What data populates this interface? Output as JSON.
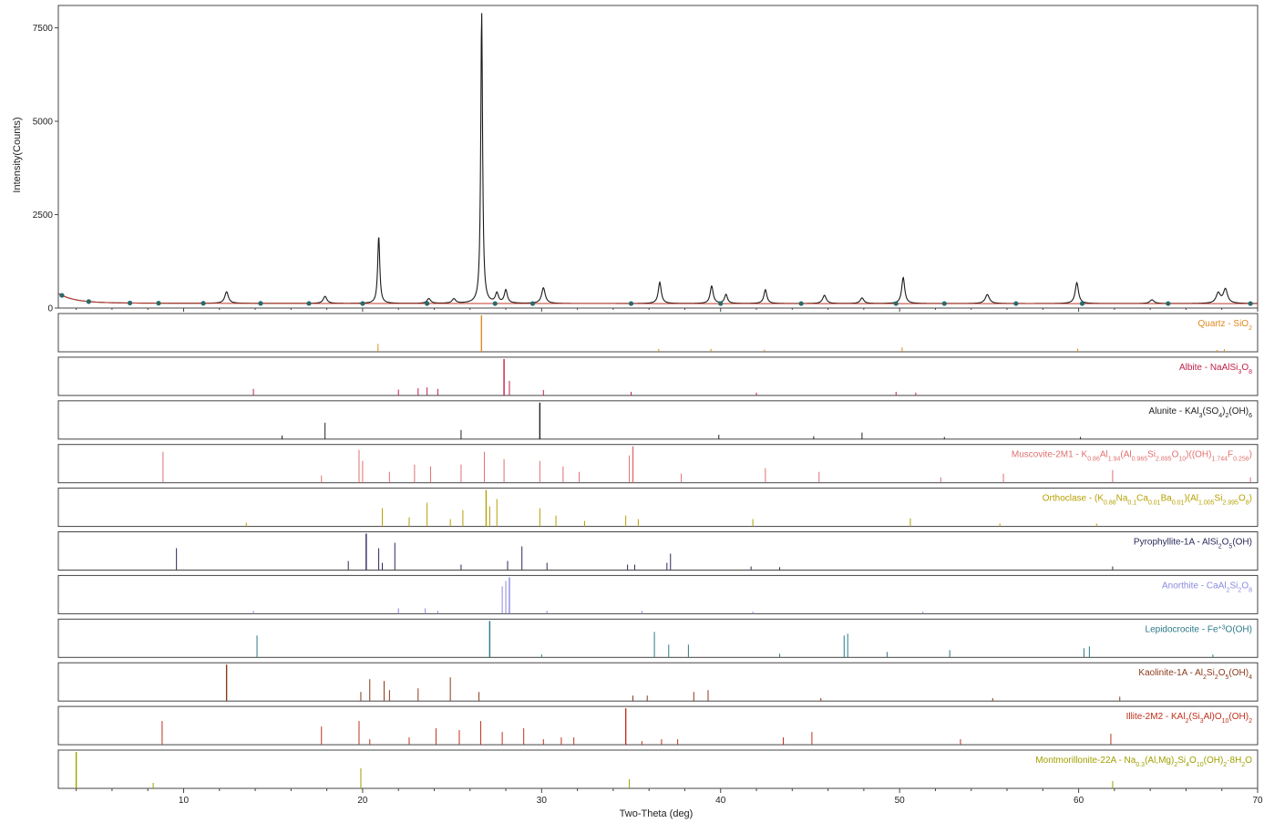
{
  "chart_data": {
    "type": "line",
    "title": "",
    "xlabel": "Two-Theta (deg)",
    "ylabel": "Intensity(Counts)",
    "xlim": [
      3,
      70
    ],
    "ylim": [
      0,
      8100
    ],
    "x_ticks": [
      "10",
      "20",
      "30",
      "40",
      "50",
      "60",
      "70"
    ],
    "y_ticks": [
      "0",
      "2500",
      "5000",
      "7500"
    ],
    "pattern": {
      "color": "#1a1a1a",
      "background_color": "#c0392b",
      "background_level": 120,
      "peaks": [
        {
          "x": 12.4,
          "y": 310,
          "w": 0.12
        },
        {
          "x": 17.9,
          "y": 190,
          "w": 0.12
        },
        {
          "x": 20.9,
          "y": 1800,
          "w": 0.07
        },
        {
          "x": 23.7,
          "y": 130,
          "w": 0.12
        },
        {
          "x": 25.1,
          "y": 120,
          "w": 0.12
        },
        {
          "x": 26.65,
          "y": 7850,
          "w": 0.06
        },
        {
          "x": 27.5,
          "y": 260,
          "w": 0.1
        },
        {
          "x": 28.0,
          "y": 350,
          "w": 0.1
        },
        {
          "x": 30.1,
          "y": 420,
          "w": 0.12
        },
        {
          "x": 36.6,
          "y": 570,
          "w": 0.1
        },
        {
          "x": 39.5,
          "y": 470,
          "w": 0.1
        },
        {
          "x": 40.3,
          "y": 240,
          "w": 0.1
        },
        {
          "x": 42.5,
          "y": 370,
          "w": 0.1
        },
        {
          "x": 45.8,
          "y": 220,
          "w": 0.12
        },
        {
          "x": 47.9,
          "y": 150,
          "w": 0.12
        },
        {
          "x": 50.2,
          "y": 700,
          "w": 0.1
        },
        {
          "x": 54.9,
          "y": 240,
          "w": 0.14
        },
        {
          "x": 59.9,
          "y": 560,
          "w": 0.11
        },
        {
          "x": 64.1,
          "y": 100,
          "w": 0.14
        },
        {
          "x": 67.8,
          "y": 270,
          "w": 0.14
        },
        {
          "x": 68.2,
          "y": 380,
          "w": 0.14
        }
      ]
    },
    "background_points": [
      3.2,
      4.7,
      7.0,
      8.6,
      11.1,
      14.3,
      17.0,
      20.0,
      23.6,
      27.4,
      29.5,
      35.0,
      40.0,
      44.5,
      49.8,
      52.5,
      56.5,
      60.2,
      65.0,
      69.6
    ],
    "phases": [
      {
        "name_html": "Quartz - SiO<tspan baseline-shift=\"sub\" font-size=\"7\">2</tspan>",
        "color": "#e08a1e",
        "sticks": [
          [
            20.86,
            0.22
          ],
          [
            26.64,
            1.0
          ],
          [
            36.54,
            0.08
          ],
          [
            39.46,
            0.08
          ],
          [
            42.45,
            0.06
          ],
          [
            50.14,
            0.12
          ],
          [
            59.95,
            0.09
          ],
          [
            68.14,
            0.07
          ],
          [
            67.74,
            0.05
          ]
        ]
      },
      {
        "name_html": "Albite - NaAlSi<tspan baseline-shift=\"sub\" font-size=\"7\">3</tspan>O<tspan baseline-shift=\"sub\" font-size=\"7\">8</tspan>",
        "color": "#c0204a",
        "sticks": [
          [
            13.9,
            0.18
          ],
          [
            22.0,
            0.16
          ],
          [
            23.1,
            0.2
          ],
          [
            23.6,
            0.22
          ],
          [
            24.2,
            0.18
          ],
          [
            27.9,
            1.0
          ],
          [
            28.2,
            0.4
          ],
          [
            30.1,
            0.15
          ],
          [
            35.0,
            0.1
          ],
          [
            42.0,
            0.08
          ],
          [
            49.8,
            0.1
          ],
          [
            50.9,
            0.08
          ]
        ]
      },
      {
        "name_html": "Alunite - KAl<tspan baseline-shift=\"sub\" font-size=\"7\">3</tspan>(SO<tspan baseline-shift=\"sub\" font-size=\"7\">4</tspan>)<tspan baseline-shift=\"sub\" font-size=\"7\">2</tspan>(OH)<tspan baseline-shift=\"sub\" font-size=\"7\">6</tspan>",
        "color": "#222222",
        "sticks": [
          [
            15.5,
            0.1
          ],
          [
            17.9,
            0.45
          ],
          [
            25.5,
            0.25
          ],
          [
            29.9,
            1.0
          ],
          [
            39.9,
            0.12
          ],
          [
            45.2,
            0.08
          ],
          [
            47.9,
            0.18
          ],
          [
            52.5,
            0.06
          ],
          [
            60.1,
            0.06
          ]
        ]
      },
      {
        "name_html": "Muscovite-2M1 - K<tspan baseline-shift=\"sub\" font-size=\"7\">0.86</tspan>Al<tspan baseline-shift=\"sub\" font-size=\"7\">1.94</tspan>(Al<tspan baseline-shift=\"sub\" font-size=\"7\">0.965</tspan>Si<tspan baseline-shift=\"sub\" font-size=\"7\">2.895</tspan>O<tspan baseline-shift=\"sub\" font-size=\"7\">10</tspan>)((OH)<tspan baseline-shift=\"sub\" font-size=\"7\">1.744</tspan>F<tspan baseline-shift=\"sub\" font-size=\"7\">0.256</tspan>)",
        "color": "#e07070",
        "sticks": [
          [
            8.85,
            0.85
          ],
          [
            17.7,
            0.2
          ],
          [
            19.8,
            0.9
          ],
          [
            20.0,
            0.6
          ],
          [
            21.5,
            0.3
          ],
          [
            22.9,
            0.5
          ],
          [
            23.8,
            0.45
          ],
          [
            25.5,
            0.5
          ],
          [
            26.8,
            0.85
          ],
          [
            27.9,
            0.65
          ],
          [
            29.9,
            0.6
          ],
          [
            31.2,
            0.45
          ],
          [
            32.1,
            0.3
          ],
          [
            34.9,
            0.75
          ],
          [
            35.1,
            1.0
          ],
          [
            37.8,
            0.25
          ],
          [
            42.5,
            0.4
          ],
          [
            45.5,
            0.3
          ],
          [
            52.3,
            0.15
          ],
          [
            55.8,
            0.25
          ],
          [
            61.9,
            0.35
          ],
          [
            69.6,
            0.15
          ]
        ]
      },
      {
        "name_html": "Orthoclase - (K<tspan baseline-shift=\"sub\" font-size=\"7\">0.88</tspan>Na<tspan baseline-shift=\"sub\" font-size=\"7\">0.1</tspan>Ca<tspan baseline-shift=\"sub\" font-size=\"7\">0.01</tspan>Ba<tspan baseline-shift=\"sub\" font-size=\"7\">0.01</tspan>)(Al<tspan baseline-shift=\"sub\" font-size=\"7\">1.005</tspan>Si<tspan baseline-shift=\"sub\" font-size=\"7\">2.995</tspan>O<tspan baseline-shift=\"sub\" font-size=\"7\">8</tspan>)",
        "color": "#b5a000",
        "sticks": [
          [
            13.5,
            0.1
          ],
          [
            21.1,
            0.5
          ],
          [
            22.6,
            0.25
          ],
          [
            23.6,
            0.65
          ],
          [
            24.9,
            0.2
          ],
          [
            25.6,
            0.45
          ],
          [
            26.9,
            1.0
          ],
          [
            27.1,
            0.55
          ],
          [
            27.5,
            0.75
          ],
          [
            29.9,
            0.5
          ],
          [
            30.8,
            0.3
          ],
          [
            32.4,
            0.15
          ],
          [
            34.7,
            0.3
          ],
          [
            35.4,
            0.2
          ],
          [
            41.8,
            0.2
          ],
          [
            50.6,
            0.22
          ],
          [
            55.6,
            0.08
          ],
          [
            61.0,
            0.08
          ]
        ]
      },
      {
        "name_html": "Pyrophyllite-1A - AlSi<tspan baseline-shift=\"sub\" font-size=\"7\">2</tspan>O<tspan baseline-shift=\"sub\" font-size=\"7\">5</tspan>(OH)",
        "color": "#2a2a5a",
        "sticks": [
          [
            9.6,
            0.6
          ],
          [
            19.2,
            0.25
          ],
          [
            20.2,
            1.0
          ],
          [
            20.9,
            0.6
          ],
          [
            21.1,
            0.2
          ],
          [
            21.8,
            0.75
          ],
          [
            25.5,
            0.15
          ],
          [
            28.1,
            0.25
          ],
          [
            28.9,
            0.65
          ],
          [
            30.3,
            0.2
          ],
          [
            34.8,
            0.15
          ],
          [
            35.2,
            0.15
          ],
          [
            37.0,
            0.2
          ],
          [
            37.2,
            0.45
          ],
          [
            41.7,
            0.1
          ],
          [
            43.3,
            0.08
          ],
          [
            61.9,
            0.1
          ]
        ]
      },
      {
        "name_html": "Anorthite - CaAl<tspan baseline-shift=\"sub\" font-size=\"7\">2</tspan>Si<tspan baseline-shift=\"sub\" font-size=\"7\">2</tspan>O<tspan baseline-shift=\"sub\" font-size=\"7\">8</tspan>",
        "color": "#8a8ae0",
        "sticks": [
          [
            13.9,
            0.08
          ],
          [
            22.0,
            0.15
          ],
          [
            23.5,
            0.15
          ],
          [
            24.2,
            0.08
          ],
          [
            27.8,
            0.75
          ],
          [
            28.0,
            0.9
          ],
          [
            28.2,
            1.0
          ],
          [
            30.3,
            0.08
          ],
          [
            35.6,
            0.08
          ],
          [
            41.8,
            0.06
          ],
          [
            51.3,
            0.06
          ]
        ]
      },
      {
        "name_html": "Lepidocrocite - Fe<tspan baseline-shift=\"super\" font-size=\"7\">+3</tspan>O(OH)",
        "color": "#2a7a8a",
        "sticks": [
          [
            14.1,
            0.6
          ],
          [
            27.1,
            1.0
          ],
          [
            30.0,
            0.08
          ],
          [
            36.3,
            0.7
          ],
          [
            37.1,
            0.35
          ],
          [
            38.2,
            0.35
          ],
          [
            43.3,
            0.1
          ],
          [
            46.9,
            0.6
          ],
          [
            47.1,
            0.65
          ],
          [
            49.3,
            0.15
          ],
          [
            52.8,
            0.2
          ],
          [
            60.3,
            0.25
          ],
          [
            60.6,
            0.3
          ],
          [
            67.5,
            0.08
          ]
        ]
      },
      {
        "name_html": "Kaolinite-1A - Al<tspan baseline-shift=\"sub\" font-size=\"7\">2</tspan>Si<tspan baseline-shift=\"sub\" font-size=\"7\">2</tspan>O<tspan baseline-shift=\"sub\" font-size=\"7\">5</tspan>(OH)<tspan baseline-shift=\"sub\" font-size=\"7\">4</tspan>",
        "color": "#8a3a1a",
        "sticks": [
          [
            12.4,
            1.0
          ],
          [
            19.9,
            0.25
          ],
          [
            20.4,
            0.6
          ],
          [
            21.2,
            0.55
          ],
          [
            21.5,
            0.3
          ],
          [
            23.1,
            0.35
          ],
          [
            24.9,
            0.65
          ],
          [
            26.5,
            0.25
          ],
          [
            35.1,
            0.15
          ],
          [
            35.9,
            0.15
          ],
          [
            38.5,
            0.25
          ],
          [
            39.3,
            0.3
          ],
          [
            45.6,
            0.08
          ],
          [
            55.2,
            0.08
          ],
          [
            62.3,
            0.12
          ]
        ]
      },
      {
        "name_html": "Illite-2M2 - KAl<tspan baseline-shift=\"sub\" font-size=\"7\">2</tspan>(Si<tspan baseline-shift=\"sub\" font-size=\"7\">3</tspan>Al)O<tspan baseline-shift=\"sub\" font-size=\"7\">10</tspan>(OH)<tspan baseline-shift=\"sub\" font-size=\"7\">2</tspan>",
        "color": "#c0301a",
        "sticks": [
          [
            8.8,
            0.65
          ],
          [
            17.7,
            0.5
          ],
          [
            19.8,
            0.65
          ],
          [
            20.4,
            0.15
          ],
          [
            22.6,
            0.2
          ],
          [
            24.1,
            0.45
          ],
          [
            25.4,
            0.4
          ],
          [
            26.6,
            0.65
          ],
          [
            27.8,
            0.35
          ],
          [
            29.0,
            0.45
          ],
          [
            30.1,
            0.15
          ],
          [
            31.1,
            0.2
          ],
          [
            31.8,
            0.2
          ],
          [
            34.7,
            1.0
          ],
          [
            35.6,
            0.1
          ],
          [
            36.7,
            0.15
          ],
          [
            37.6,
            0.15
          ],
          [
            43.5,
            0.2
          ],
          [
            45.1,
            0.35
          ],
          [
            53.4,
            0.15
          ],
          [
            61.8,
            0.3
          ]
        ]
      },
      {
        "name_html": "Montmorillonite-22A - Na<tspan baseline-shift=\"sub\" font-size=\"7\">0.3</tspan>(Al,Mg)<tspan baseline-shift=\"sub\" font-size=\"7\">2</tspan>Si<tspan baseline-shift=\"sub\" font-size=\"7\">4</tspan>O<tspan baseline-shift=\"sub\" font-size=\"7\">10</tspan>(OH)<tspan baseline-shift=\"sub\" font-size=\"7\">2</tspan>·8H<tspan baseline-shift=\"sub\" font-size=\"7\">2</tspan>O",
        "color": "#a0a000",
        "sticks": [
          [
            4.0,
            1.0
          ],
          [
            8.3,
            0.15
          ],
          [
            19.9,
            0.55
          ],
          [
            34.9,
            0.25
          ],
          [
            61.9,
            0.2
          ]
        ]
      }
    ]
  }
}
